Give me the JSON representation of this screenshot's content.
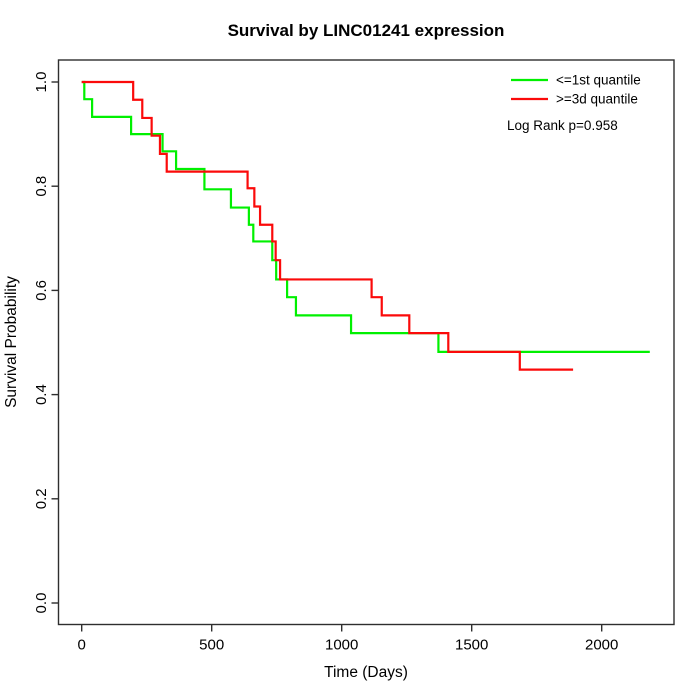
{
  "title": "Survival by LINC01241 expression",
  "chart_data": {
    "type": "line",
    "subtype": "kaplan-meier-step",
    "title": "Survival by LINC01241 expression",
    "xlabel": "Time (Days)",
    "ylabel": "Survival Probability",
    "xlim": [
      0,
      2300
    ],
    "ylim": [
      0.0,
      1.0
    ],
    "grid": "off",
    "x_ticks": [
      0,
      500,
      1000,
      1500,
      2000
    ],
    "x_tick_labels": [
      "0",
      "500",
      "1000",
      "1500",
      "2000"
    ],
    "y_ticks": [
      0.0,
      0.2,
      0.4,
      0.6,
      0.8,
      1.0
    ],
    "y_tick_labels": [
      "0.0",
      "0.2",
      "0.4",
      "0.6",
      "0.8",
      "1.0"
    ],
    "legend": {
      "position": "topright",
      "entries": [
        {
          "label": "<=1st quantile",
          "color": "#00F000"
        },
        {
          "label": ">=3d quantile",
          "color": "#FB0A0A"
        }
      ],
      "note": "Log Rank p=0.958"
    },
    "series": [
      {
        "name": "<=1st quantile",
        "color": "#00F000",
        "end_time": 2185,
        "steps": [
          [
            0,
            1.0
          ],
          [
            10,
            0.967
          ],
          [
            40,
            0.933
          ],
          [
            190,
            0.9
          ],
          [
            311,
            0.867
          ],
          [
            363,
            0.833
          ],
          [
            472,
            0.794
          ],
          [
            574,
            0.759
          ],
          [
            643,
            0.726
          ],
          [
            660,
            0.694
          ],
          [
            733,
            0.658
          ],
          [
            748,
            0.621
          ],
          [
            790,
            0.587
          ],
          [
            824,
            0.552
          ],
          [
            1036,
            0.518
          ],
          [
            1372,
            0.482
          ]
        ]
      },
      {
        "name": ">=3d quantile",
        "color": "#FB0A0A",
        "end_time": 1890,
        "steps": [
          [
            0,
            1.0
          ],
          [
            198,
            0.966
          ],
          [
            233,
            0.931
          ],
          [
            269,
            0.897
          ],
          [
            301,
            0.862
          ],
          [
            327,
            0.828
          ],
          [
            638,
            0.796
          ],
          [
            664,
            0.761
          ],
          [
            686,
            0.726
          ],
          [
            733,
            0.694
          ],
          [
            746,
            0.658
          ],
          [
            763,
            0.621
          ],
          [
            1115,
            0.587
          ],
          [
            1154,
            0.552
          ],
          [
            1260,
            0.518
          ],
          [
            1410,
            0.482
          ],
          [
            1685,
            0.448
          ]
        ]
      }
    ]
  }
}
